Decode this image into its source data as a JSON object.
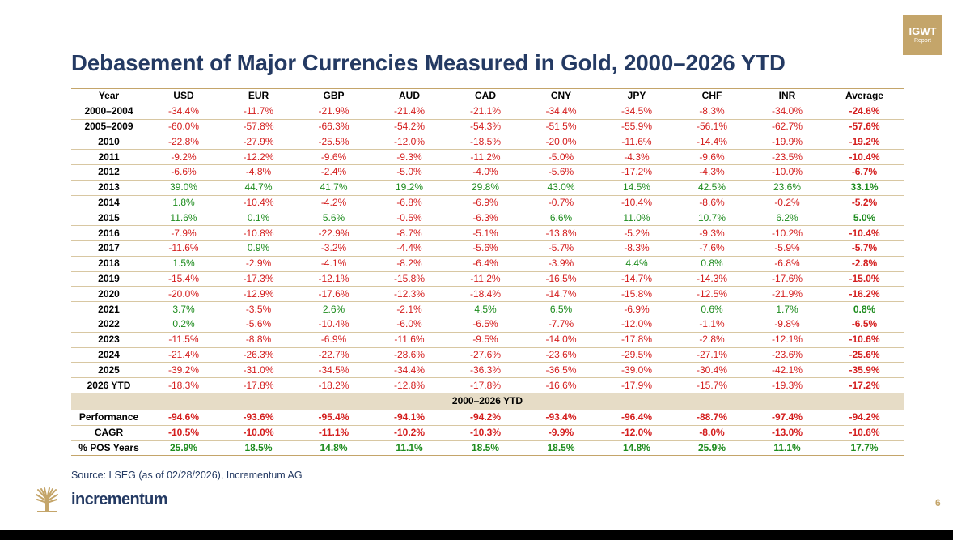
{
  "badge": {
    "line1": "IGWT",
    "line2": "Report"
  },
  "title": "Debasement of Major Currencies Measured in Gold, 2000–2026 YTD",
  "table": {
    "headers": [
      "Year",
      "USD",
      "EUR",
      "GBP",
      "AUD",
      "CAD",
      "CNY",
      "JPY",
      "CHF",
      "INR",
      "Average"
    ],
    "rows": [
      [
        "2000–2004",
        "-34.4%",
        "-11.7%",
        "-21.9%",
        "-21.4%",
        "-21.1%",
        "-34.4%",
        "-34.5%",
        "-8.3%",
        "-34.0%",
        "-24.6%"
      ],
      [
        "2005–2009",
        "-60.0%",
        "-57.8%",
        "-66.3%",
        "-54.2%",
        "-54.3%",
        "-51.5%",
        "-55.9%",
        "-56.1%",
        "-62.7%",
        "-57.6%"
      ],
      [
        "2010",
        "-22.8%",
        "-27.9%",
        "-25.5%",
        "-12.0%",
        "-18.5%",
        "-20.0%",
        "-11.6%",
        "-14.4%",
        "-19.9%",
        "-19.2%"
      ],
      [
        "2011",
        "-9.2%",
        "-12.2%",
        "-9.6%",
        "-9.3%",
        "-11.2%",
        "-5.0%",
        "-4.3%",
        "-9.6%",
        "-23.5%",
        "-10.4%"
      ],
      [
        "2012",
        "-6.6%",
        "-4.8%",
        "-2.4%",
        "-5.0%",
        "-4.0%",
        "-5.6%",
        "-17.2%",
        "-4.3%",
        "-10.0%",
        "-6.7%"
      ],
      [
        "2013",
        "39.0%",
        "44.7%",
        "41.7%",
        "19.2%",
        "29.8%",
        "43.0%",
        "14.5%",
        "42.5%",
        "23.6%",
        "33.1%"
      ],
      [
        "2014",
        "1.8%",
        "-10.4%",
        "-4.2%",
        "-6.8%",
        "-6.9%",
        "-0.7%",
        "-10.4%",
        "-8.6%",
        "-0.2%",
        "-5.2%"
      ],
      [
        "2015",
        "11.6%",
        "0.1%",
        "5.6%",
        "-0.5%",
        "-6.3%",
        "6.6%",
        "11.0%",
        "10.7%",
        "6.2%",
        "5.0%"
      ],
      [
        "2016",
        "-7.9%",
        "-10.8%",
        "-22.9%",
        "-8.7%",
        "-5.1%",
        "-13.8%",
        "-5.2%",
        "-9.3%",
        "-10.2%",
        "-10.4%"
      ],
      [
        "2017",
        "-11.6%",
        "0.9%",
        "-3.2%",
        "-4.4%",
        "-5.6%",
        "-5.7%",
        "-8.3%",
        "-7.6%",
        "-5.9%",
        "-5.7%"
      ],
      [
        "2018",
        "1.5%",
        "-2.9%",
        "-4.1%",
        "-8.2%",
        "-6.4%",
        "-3.9%",
        "4.4%",
        "0.8%",
        "-6.8%",
        "-2.8%"
      ],
      [
        "2019",
        "-15.4%",
        "-17.3%",
        "-12.1%",
        "-15.8%",
        "-11.2%",
        "-16.5%",
        "-14.7%",
        "-14.3%",
        "-17.6%",
        "-15.0%"
      ],
      [
        "2020",
        "-20.0%",
        "-12.9%",
        "-17.6%",
        "-12.3%",
        "-18.4%",
        "-14.7%",
        "-15.8%",
        "-12.5%",
        "-21.9%",
        "-16.2%"
      ],
      [
        "2021",
        "3.7%",
        "-3.5%",
        "2.6%",
        "-2.1%",
        "4.5%",
        "6.5%",
        "-6.9%",
        "0.6%",
        "1.7%",
        "0.8%"
      ],
      [
        "2022",
        "0.2%",
        "-5.6%",
        "-10.4%",
        "-6.0%",
        "-6.5%",
        "-7.7%",
        "-12.0%",
        "-1.1%",
        "-9.8%",
        "-6.5%"
      ],
      [
        "2023",
        "-11.5%",
        "-8.8%",
        "-6.9%",
        "-11.6%",
        "-9.5%",
        "-14.0%",
        "-17.8%",
        "-2.8%",
        "-12.1%",
        "-10.6%"
      ],
      [
        "2024",
        "-21.4%",
        "-26.3%",
        "-22.7%",
        "-28.6%",
        "-27.6%",
        "-23.6%",
        "-29.5%",
        "-27.1%",
        "-23.6%",
        "-25.6%"
      ],
      [
        "2025",
        "-39.2%",
        "-31.0%",
        "-34.5%",
        "-34.4%",
        "-36.3%",
        "-36.5%",
        "-39.0%",
        "-30.4%",
        "-42.1%",
        "-35.9%"
      ],
      [
        "2026 YTD",
        "-18.3%",
        "-17.8%",
        "-18.2%",
        "-12.8%",
        "-17.8%",
        "-16.6%",
        "-17.9%",
        "-15.7%",
        "-19.3%",
        "-17.2%"
      ]
    ],
    "section_label": "2000–2026 YTD",
    "summary": [
      [
        "Performance",
        "-94.6%",
        "-93.6%",
        "-95.4%",
        "-94.1%",
        "-94.2%",
        "-93.4%",
        "-96.4%",
        "-88.7%",
        "-97.4%",
        "-94.2%"
      ],
      [
        "CAGR",
        "-10.5%",
        "-10.0%",
        "-11.1%",
        "-10.2%",
        "-10.3%",
        "-9.9%",
        "-12.0%",
        "-8.0%",
        "-13.0%",
        "-10.6%"
      ],
      [
        "% POS Years",
        "25.9%",
        "18.5%",
        "14.8%",
        "11.1%",
        "18.5%",
        "18.5%",
        "14.8%",
        "25.9%",
        "11.1%",
        "17.7%"
      ]
    ]
  },
  "source": "Source: LSEG (as of 02/28/2026), Incrementum AG",
  "brand": "incrementum",
  "page_number": "6",
  "colors": {
    "title": "#243a63",
    "gold": "#c4a56a",
    "positive": "#1e8c1e",
    "negative": "#d41e1e",
    "section_bg": "#e6dcc6"
  },
  "icons": {
    "logo": "tree-logo-icon"
  }
}
